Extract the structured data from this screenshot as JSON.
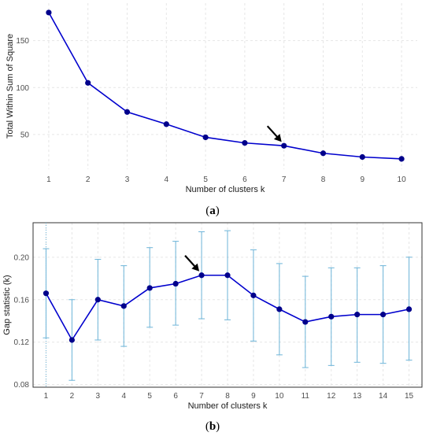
{
  "colors": {
    "series": "#0000cd",
    "point": "#00008b",
    "errorbar": "#6cb4d8",
    "arrow": "#000000"
  },
  "chart_data": [
    {
      "type": "line",
      "panel_label": "(a)",
      "caption_letter": "a",
      "xlabel": "Number of clusters k",
      "ylabel": "Total Within Sum of Square",
      "x": [
        1,
        2,
        3,
        4,
        5,
        6,
        7,
        8,
        9,
        10
      ],
      "series": [
        {
          "values": [
            180,
            105,
            74,
            61,
            47,
            41,
            38,
            30,
            26,
            24
          ]
        }
      ],
      "xlim": [
        0.6,
        10.4
      ],
      "ylim": [
        13,
        190
      ],
      "x_ticks": [
        "1",
        "2",
        "3",
        "4",
        "5",
        "6",
        "7",
        "8",
        "9",
        "10"
      ],
      "y_ticks": [
        50,
        100,
        150
      ],
      "y_tick_labels": [
        "50",
        "100",
        "150"
      ],
      "grid": true,
      "annotation": {
        "type": "arrow",
        "x": 7,
        "y": 38
      }
    },
    {
      "type": "line",
      "panel_label": "(b)",
      "caption_letter": "b",
      "xlabel": "Number of clusters k",
      "ylabel": "Gap statistic (k)",
      "x": [
        1,
        2,
        3,
        4,
        5,
        6,
        7,
        8,
        9,
        10,
        11,
        12,
        13,
        14,
        15
      ],
      "series": [
        {
          "values": [
            0.166,
            0.122,
            0.16,
            0.154,
            0.171,
            0.175,
            0.183,
            0.183,
            0.164,
            0.151,
            0.139,
            0.144,
            0.146,
            0.146,
            0.151
          ],
          "error_low": [
            0.124,
            0.084,
            0.122,
            0.116,
            0.134,
            0.136,
            0.142,
            0.141,
            0.121,
            0.108,
            0.096,
            0.098,
            0.101,
            0.1,
            0.103
          ],
          "error_high": [
            0.208,
            0.16,
            0.198,
            0.192,
            0.209,
            0.215,
            0.224,
            0.225,
            0.207,
            0.194,
            0.182,
            0.19,
            0.19,
            0.192,
            0.2
          ]
        }
      ],
      "xlim": [
        0.5,
        15.5
      ],
      "ylim": [
        0.0775,
        0.2325
      ],
      "x_ticks": [
        "1",
        "2",
        "3",
        "4",
        "5",
        "6",
        "7",
        "8",
        "9",
        "10",
        "11",
        "12",
        "13",
        "14",
        "15"
      ],
      "y_ticks": [
        0.08,
        0.12,
        0.16,
        0.2
      ],
      "y_tick_labels": [
        "0.08",
        "0.12",
        "0.16",
        "0.20"
      ],
      "grid": true,
      "vline_at_x": 1,
      "annotation": {
        "type": "arrow",
        "x": 7,
        "y": 0.183
      }
    }
  ]
}
